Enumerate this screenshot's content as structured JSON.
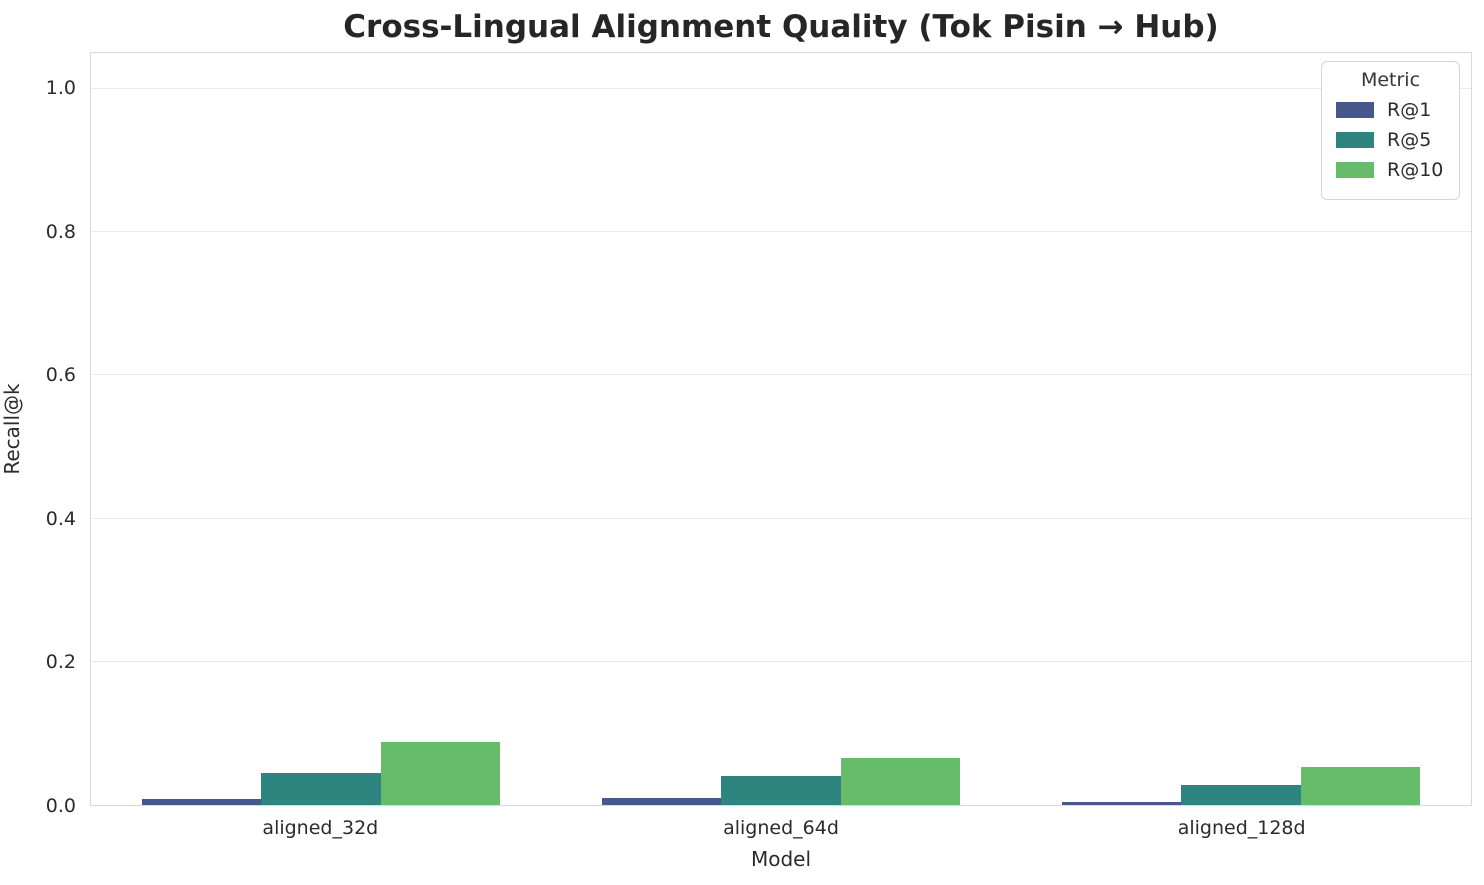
{
  "chart_data": {
    "type": "bar",
    "title": "Cross-Lingual Alignment Quality (Tok Pisin → Hub)",
    "xlabel": "Model",
    "ylabel": "Recall@k",
    "categories": [
      "aligned_32d",
      "aligned_64d",
      "aligned_128d"
    ],
    "series": [
      {
        "name": "R@1",
        "color": "#45578b",
        "values": [
          0.008,
          0.01,
          0.004
        ]
      },
      {
        "name": "R@5",
        "color": "#2e847e",
        "values": [
          0.045,
          0.04,
          0.028
        ]
      },
      {
        "name": "R@10",
        "color": "#66bc6b",
        "values": [
          0.088,
          0.066,
          0.053
        ]
      }
    ],
    "ylim": [
      0,
      1.05
    ],
    "yticks": [
      "0.0",
      "0.2",
      "0.4",
      "0.6",
      "0.8",
      "1.0"
    ],
    "grid": true,
    "legend": {
      "title": "Metric",
      "position": "upper right"
    },
    "colors": {
      "grid_line": "#eaeaea",
      "plot_border": "#d9d9d9",
      "text": "#2b2b2b",
      "title_text": "#262626"
    }
  }
}
